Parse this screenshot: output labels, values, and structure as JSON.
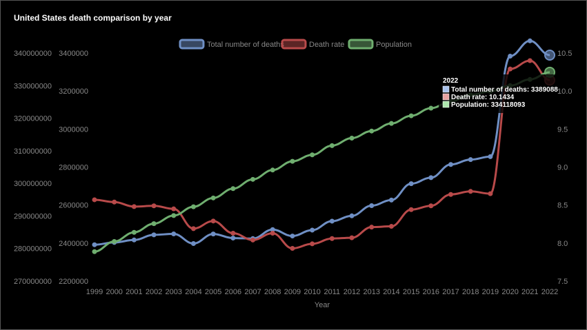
{
  "chart_data": {
    "type": "line",
    "title": "United States death comparison by year",
    "xlabel": "Year",
    "categories": [
      "1999",
      "2000",
      "2001",
      "2002",
      "2003",
      "2004",
      "2005",
      "2006",
      "2007",
      "2008",
      "2009",
      "2010",
      "2011",
      "2012",
      "2013",
      "2014",
      "2015",
      "2016",
      "2017",
      "2018",
      "2019",
      "2020",
      "2021",
      "2022"
    ],
    "axes": {
      "y_population": {
        "min": 270000000,
        "max": 340000000,
        "ticks": [
          270000000,
          280000000,
          290000000,
          300000000,
          310000000,
          320000000,
          330000000,
          340000000
        ]
      },
      "y_deaths": {
        "min": 2200000,
        "max": 3400000,
        "ticks": [
          2200000,
          2400000,
          2600000,
          2800000,
          3000000,
          3200000,
          3400000
        ]
      },
      "y_rate": {
        "min": 7.5,
        "max": 10.5,
        "ticks": [
          7.5,
          8.0,
          8.5,
          9.0,
          9.5,
          10.0,
          10.5
        ]
      }
    },
    "series": [
      {
        "name": "Total number of deaths",
        "axis": "y_deaths",
        "color": "#6f8fc4",
        "values": [
          2391400,
          2403400,
          2416400,
          2443400,
          2448300,
          2397600,
          2448000,
          2426300,
          2423700,
          2471100,
          2437200,
          2468400,
          2515500,
          2543300,
          2596900,
          2626400,
          2712600,
          2744200,
          2813500,
          2839200,
          2854800,
          3383700,
          3464200,
          3389088
        ]
      },
      {
        "name": "Death rate",
        "axis": "y_rate",
        "color": "#b84a4a",
        "values": [
          8.57,
          8.54,
          8.48,
          8.49,
          8.45,
          8.19,
          8.29,
          8.13,
          8.04,
          8.13,
          7.93,
          7.99,
          8.06,
          8.07,
          8.21,
          8.22,
          8.44,
          8.49,
          8.64,
          8.68,
          8.65,
          10.29,
          10.4,
          10.1434
        ]
      },
      {
        "name": "Population",
        "axis": "y_population",
        "color": "#6fae6f",
        "values": [
          279040000,
          282160000,
          284970000,
          287630000,
          290110000,
          292810000,
          295520000,
          298380000,
          301230000,
          304090000,
          306770000,
          308750000,
          311580000,
          313880000,
          316060000,
          318390000,
          320740000,
          323070000,
          325150000,
          327170000,
          328240000,
          330000000,
          331900000,
          334118093
        ]
      }
    ],
    "legend": {
      "position": "top"
    },
    "tooltip": {
      "title": "2022",
      "lines": [
        {
          "color": "#a9c2ec",
          "text": "Total number of deaths: 3389088"
        },
        {
          "color": "#e7a3a3",
          "text": "Death rate: 10.1434"
        },
        {
          "color": "#aee7ae",
          "text": "Population: 334118093"
        }
      ]
    }
  }
}
